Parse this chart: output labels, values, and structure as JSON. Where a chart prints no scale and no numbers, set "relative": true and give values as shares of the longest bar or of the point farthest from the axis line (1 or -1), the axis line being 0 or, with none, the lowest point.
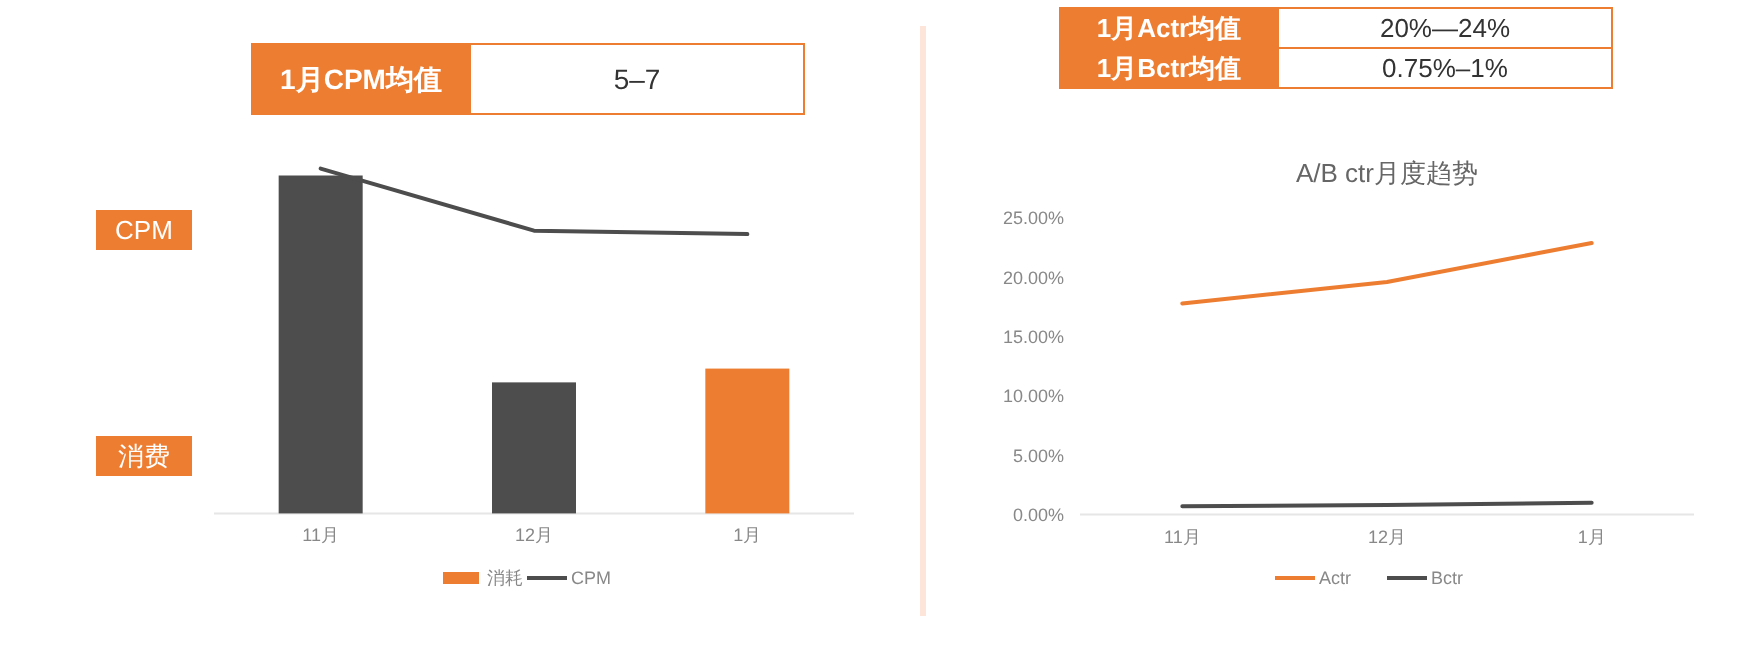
{
  "chart_data": [
    {
      "type": "other",
      "annotations": [
        "1月CPM均值",
        "5–7"
      ]
    },
    {
      "type": "bar",
      "relative": true,
      "categories": [
        "11月",
        "12月",
        "1月"
      ],
      "legend": "bottom",
      "annotations": [
        "CPM",
        "消费"
      ],
      "series": [
        {
          "name": "消耗",
          "type": "bar",
          "color": "#ed7d31",
          "colors": [
            "#4d4d4d",
            "#4d4d4d",
            "#ed7d31"
          ],
          "values": [
            0.98,
            0.38,
            0.42
          ]
        },
        {
          "name": "CPM",
          "type": "line",
          "color": "#4d4d4d",
          "values": [
            1,
            0.82,
            0.81
          ]
        }
      ]
    },
    {
      "type": "other",
      "annotations": [
        "1月Actr均值",
        "20%—24%",
        "1月Bctr均值",
        "0.75%–1%"
      ]
    },
    {
      "type": "line",
      "title": "A/B ctr月度趋势",
      "categories": [
        "11月",
        "12月",
        "1月"
      ],
      "legend": "bottom",
      "ylim": [
        0,
        25
      ],
      "yticks": [
        {
          "value": 0,
          "label": "0.00%"
        },
        {
          "value": 5,
          "label": "5.00%"
        },
        {
          "value": 10,
          "label": "10.00%"
        },
        {
          "value": 15,
          "label": "15.00%"
        },
        {
          "value": 20,
          "label": "20.00%"
        },
        {
          "value": 25,
          "label": "25.00%"
        }
      ],
      "series": [
        {
          "name": "Actr",
          "color": "#ed7d31",
          "values": [
            17.8,
            19.6,
            22.9
          ]
        },
        {
          "name": "Bctr",
          "color": "#4d4d4d",
          "values": [
            0.7,
            0.8,
            1.0
          ]
        }
      ]
    }
  ]
}
